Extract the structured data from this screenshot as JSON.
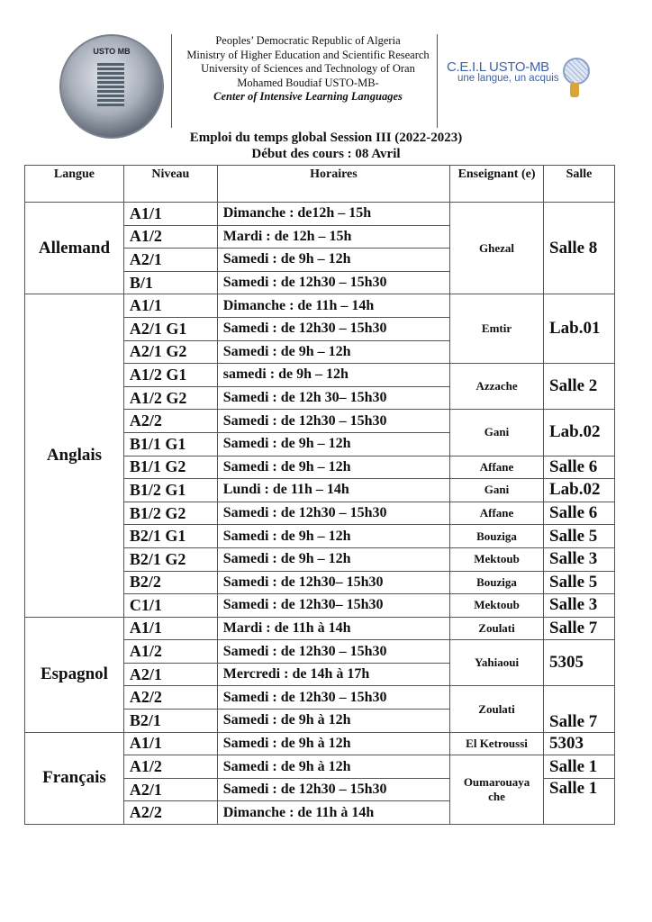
{
  "header": {
    "logo_left_text": "USTO MB",
    "lines": [
      "Peoples’ Democratic Republic of Algeria",
      "Ministry of Higher Education and Scientific Research",
      "University of Sciences and Technology of Oran",
      "Mohamed Boudiaf USTO-MB-"
    ],
    "center_name": "Center of Intensive Learning Languages",
    "logo_right_title": "C.E.I.L USTO-MB",
    "logo_right_slogan": "une langue, un acquis"
  },
  "title": "Emploi du temps global Session III (2022-2023)",
  "subtitle": "Début des cours : 08 Avril",
  "table": {
    "headers": [
      "Langue",
      "Niveau",
      "Horaires",
      "Enseignant (e)",
      "Salle"
    ],
    "languages": [
      {
        "name": "Allemand",
        "rows": [
          {
            "level": "A1/1",
            "schedule": "Dimanche : de12h – 15h",
            "teacher": "Ghezal",
            "teacher_span": 4,
            "room": "Salle 8",
            "room_span": 4
          },
          {
            "level": "A1/2",
            "schedule": "Mardi : de 12h – 15h"
          },
          {
            "level": "A2/1",
            "schedule": "Samedi : de 9h – 12h"
          },
          {
            "level": "B/1",
            "schedule": "Samedi : de 12h30 – 15h30"
          }
        ]
      },
      {
        "name": "Anglais",
        "rows": [
          {
            "level": "A1/1",
            "schedule": "Dimanche : de 11h – 14h",
            "teacher": "Emtir",
            "teacher_span": 3,
            "room": "Lab.01",
            "room_span": 3
          },
          {
            "level": "A2/1 G1",
            "schedule": "Samedi : de 12h30 – 15h30"
          },
          {
            "level": "A2/1 G2",
            "schedule": "Samedi : de 9h – 12h"
          },
          {
            "level": "A1/2 G1",
            "schedule": "samedi : de 9h – 12h",
            "teacher": "Azzache",
            "teacher_span": 2,
            "room": "Salle 2",
            "room_span": 2
          },
          {
            "level": "A1/2 G2",
            "schedule": "Samedi : de 12h 30– 15h30"
          },
          {
            "level": "A2/2",
            "schedule": "Samedi : de 12h30 – 15h30",
            "teacher": "Gani",
            "teacher_span": 2,
            "room": "Lab.02",
            "room_span": 2
          },
          {
            "level": "B1/1 G1",
            "schedule": "Samedi : de 9h – 12h"
          },
          {
            "level": "B1/1 G2",
            "schedule": "Samedi : de 9h – 12h",
            "teacher": "Affane",
            "teacher_span": 1,
            "room": "Salle 6",
            "room_span": 1
          },
          {
            "level": "B1/2 G1",
            "schedule": "Lundi : de 11h – 14h",
            "teacher": "Gani",
            "teacher_span": 1,
            "room": "Lab.02",
            "room_span": 1
          },
          {
            "level": "B1/2 G2",
            "schedule": "Samedi : de 12h30 – 15h30",
            "teacher": "Affane",
            "teacher_span": 1,
            "room": "Salle 6",
            "room_span": 1
          },
          {
            "level": "B2/1 G1",
            "schedule": "Samedi : de 9h – 12h",
            "teacher": "Bouziga",
            "teacher_span": 1,
            "room": "Salle 5",
            "room_span": 1
          },
          {
            "level": "B2/1 G2",
            "schedule": "Samedi : de 9h – 12h",
            "teacher": "Mektoub",
            "teacher_span": 1,
            "room": "Salle 3",
            "room_span": 1
          },
          {
            "level": "B2/2",
            "schedule": "Samedi : de 12h30– 15h30",
            "teacher": "Bouziga",
            "teacher_span": 1,
            "room": "Salle 5",
            "room_span": 1
          },
          {
            "level": "C1/1",
            "schedule": "Samedi : de 12h30– 15h30",
            "teacher": "Mektoub",
            "teacher_span": 1,
            "room": "Salle 3",
            "room_span": 1
          }
        ]
      },
      {
        "name": "Espagnol",
        "rows": [
          {
            "level": "A1/1",
            "schedule": "Mardi : de 11h à 14h",
            "teacher": "Zoulati",
            "teacher_span": 1,
            "room": "Salle 7",
            "room_span": 1
          },
          {
            "level": "A1/2",
            "schedule": "Samedi : de 12h30 – 15h30",
            "teacher": "Yahiaoui",
            "teacher_span": 2,
            "room": "5305",
            "room_span": 2
          },
          {
            "level": "A2/1",
            "schedule": "Mercredi : de 14h à 17h"
          },
          {
            "level": "A2/2",
            "schedule": "Samedi : de 12h30 – 15h30",
            "teacher": "Zoulati",
            "teacher_span": 2,
            "room": "Salle 7",
            "room_span": 2,
            "room_valign": "bottom"
          },
          {
            "level": "B2/1",
            "schedule": "Samedi : de 9h à 12h"
          }
        ]
      },
      {
        "name": "Français",
        "rows": [
          {
            "level": "A1/1",
            "schedule": "Samedi : de 9h à 12h",
            "teacher": "El Ketroussi",
            "teacher_span": 1,
            "room": "5303",
            "room_span": 1
          },
          {
            "level": "A1/2",
            "schedule": "Samedi : de 9h à 12h",
            "teacher": "Oumarouaya che",
            "teacher_span": 3,
            "room": "Salle 1",
            "room_span": 1
          },
          {
            "level": "A2/1",
            "schedule": "Samedi : de 12h30 – 15h30",
            "room": "Salle 1",
            "room_span": 2,
            "room_valign": "top"
          },
          {
            "level": "A2/2",
            "schedule": "Dimanche : de 11h à 14h"
          }
        ]
      }
    ]
  }
}
